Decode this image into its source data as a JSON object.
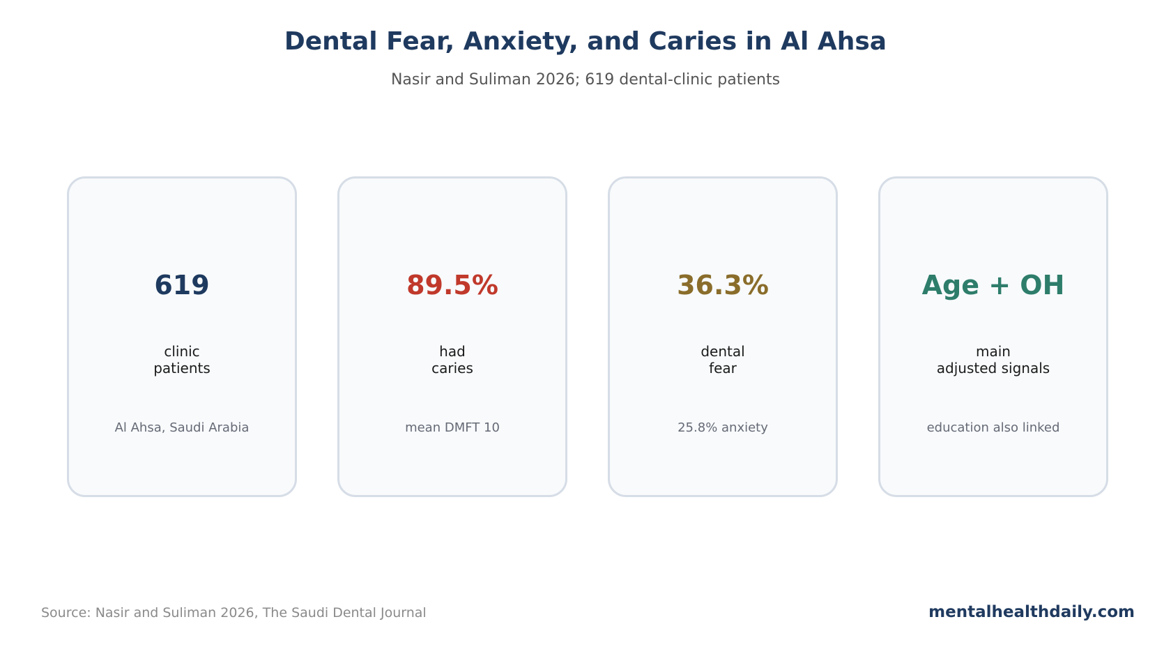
{
  "header": {
    "title": "Dental Fear, Anxiety, and Caries in Al Ahsa",
    "subtitle": "Nasir and Suliman 2026; 619 dental-clinic patients"
  },
  "cards": [
    {
      "value": "619",
      "label_line1": "clinic",
      "label_line2": "patients",
      "note": "Al Ahsa, Saudi Arabia",
      "color": "#1f3a5f"
    },
    {
      "value": "89.5%",
      "label_line1": "had",
      "label_line2": "caries",
      "note": "mean DMFT 10",
      "color": "#c0392b"
    },
    {
      "value": "36.3%",
      "label_line1": "dental",
      "label_line2": "fear",
      "note": "25.8% anxiety",
      "color": "#8a6d2b"
    },
    {
      "value": "Age + OH",
      "label_line1": "main",
      "label_line2": "adjusted signals",
      "note": "education also linked",
      "color": "#2e7d6b"
    }
  ],
  "footer": {
    "source": "Source: Nasir and Suliman 2026, The Saudi Dental Journal",
    "brand": "mentalhealthdaily.com"
  }
}
